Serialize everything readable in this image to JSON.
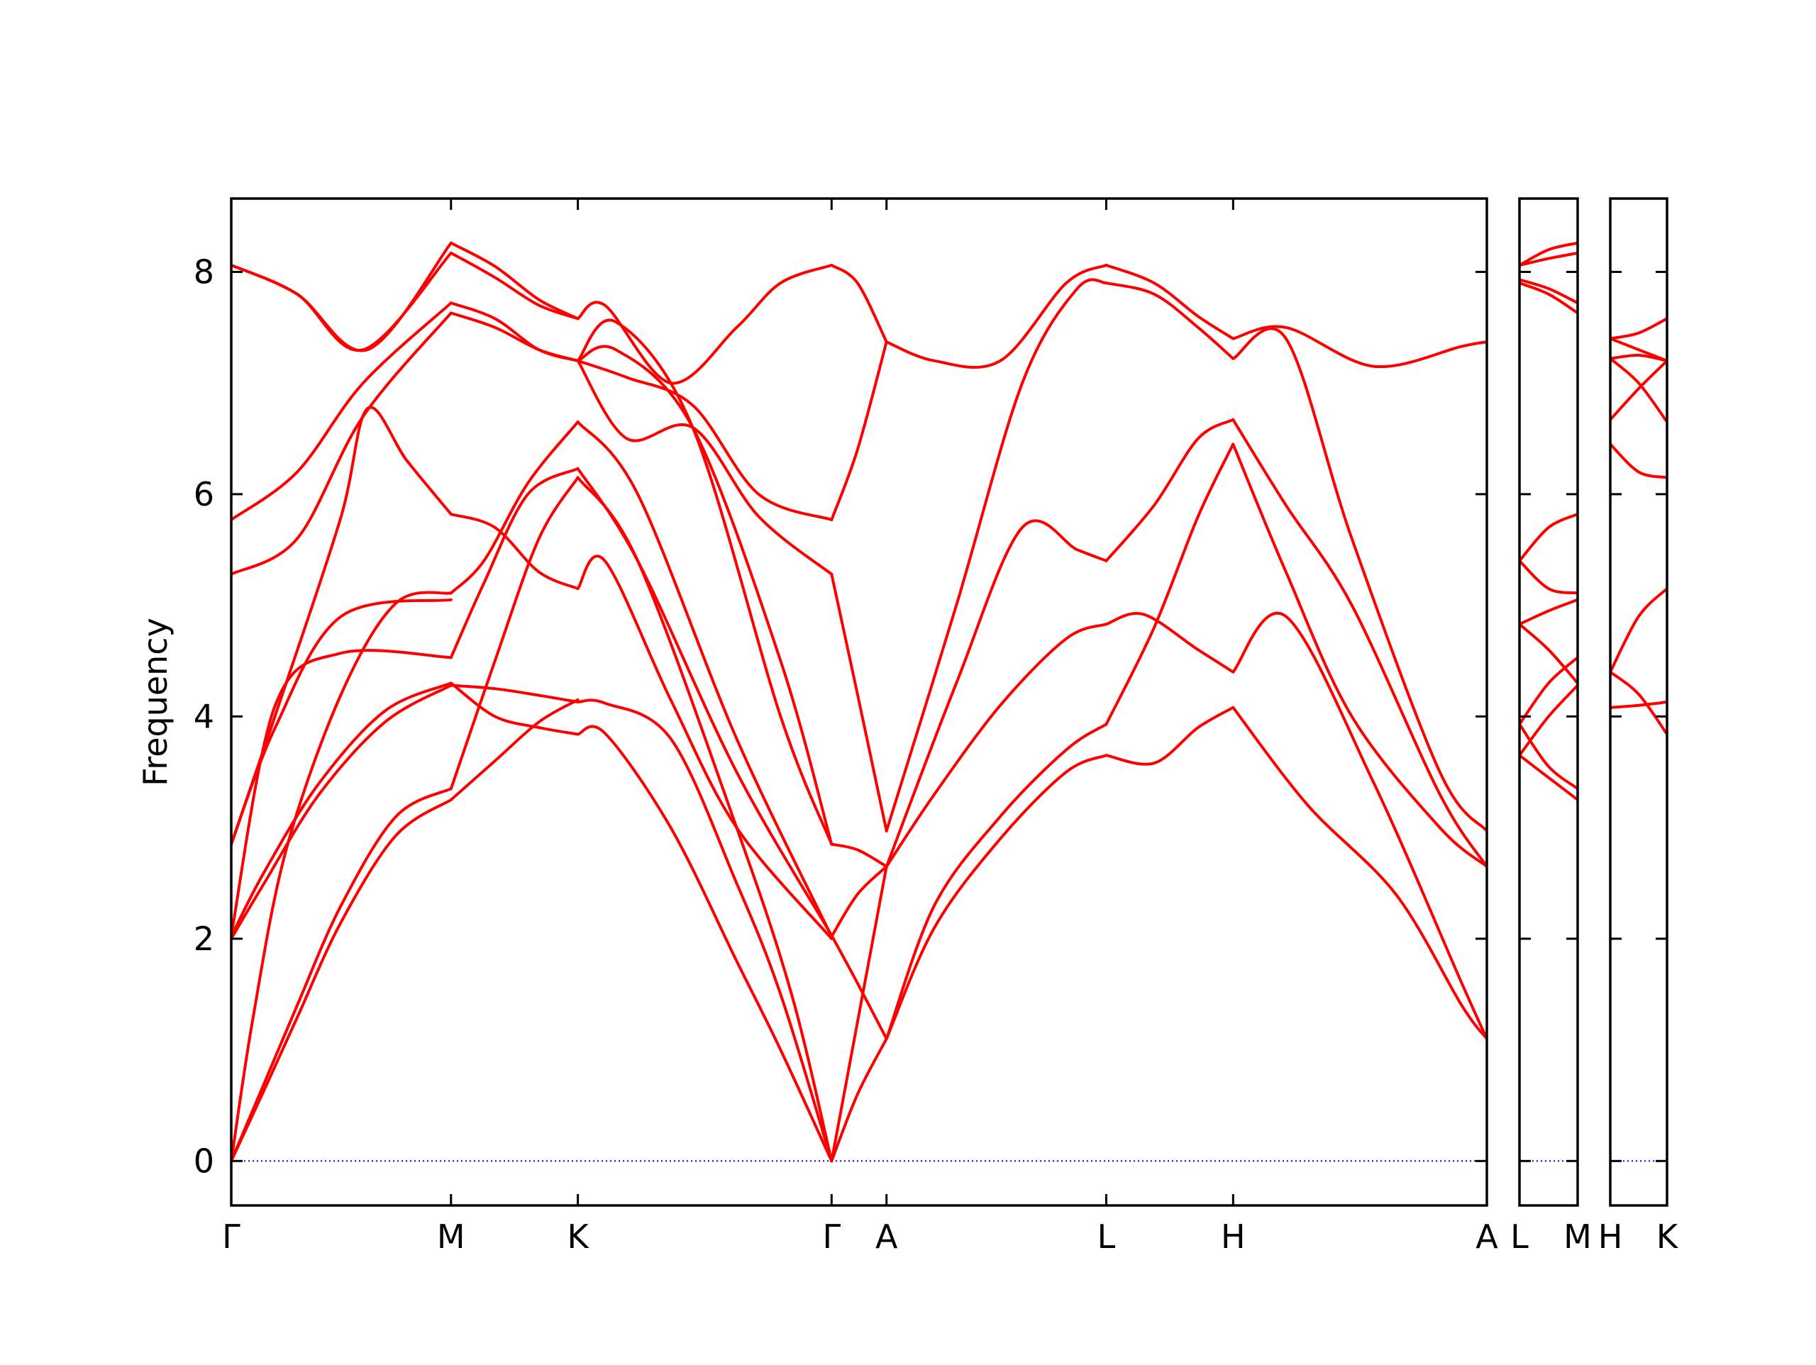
{
  "chart_data": {
    "type": "line",
    "ylabel": "Frequency",
    "ylim": [
      -0.4,
      8.66
    ],
    "yticks": [
      0,
      2,
      4,
      6,
      8
    ],
    "line_color": "#ff0000",
    "zero_line_color": "#0000ff",
    "panels": [
      {
        "segments": [
          {
            "from": "Γ",
            "to": "M",
            "x0": 0,
            "x1": 1
          },
          {
            "from": "M",
            "to": "K",
            "x0": 1,
            "x1": 1.5774
          },
          {
            "from": "K",
            "to": "Γ",
            "x0": 1.5774,
            "x1": 2.7321
          },
          {
            "from": "Γ",
            "to": "A",
            "x0": 2.7321,
            "x1": 2.9821
          },
          {
            "from": "A",
            "to": "L",
            "x0": 2.9821,
            "x1": 3.9821
          },
          {
            "from": "L",
            "to": "H",
            "x0": 3.9821,
            "x1": 4.5595
          },
          {
            "from": "H",
            "to": "A",
            "x0": 4.5595,
            "x1": 5.7142
          }
        ],
        "xlim": [
          0,
          5.7142
        ],
        "tick_labels": [
          "Γ",
          "M",
          "K",
          "Γ",
          "A",
          "L",
          "H",
          "A"
        ]
      },
      {
        "segments": [
          {
            "from": "L",
            "to": "M",
            "x0": 0,
            "x1": 0.25
          }
        ],
        "xlim": [
          0,
          0.25
        ],
        "tick_labels": [
          "L",
          "M"
        ]
      },
      {
        "segments": [
          {
            "from": "H",
            "to": "K",
            "x0": 0,
            "x1": 0.25
          }
        ],
        "xlim": [
          0,
          0.25
        ],
        "tick_labels": [
          "H",
          "K"
        ]
      }
    ],
    "series": [
      {
        "panel": 0,
        "x": [
          0,
          0.15,
          0.3,
          0.5,
          0.75,
          1
        ],
        "y": [
          0,
          0.64,
          1.29,
          2.15,
          2.93,
          3.25
        ]
      },
      {
        "panel": 0,
        "x": [
          0,
          0.15,
          0.3,
          0.5,
          0.75,
          1
        ],
        "y": [
          0,
          0.7,
          1.4,
          2.3,
          3.1,
          3.35
        ]
      },
      {
        "panel": 0,
        "x": [
          0,
          0.1,
          0.25,
          0.5,
          0.75,
          1
        ],
        "y": [
          0,
          1.3,
          2.8,
          4.2,
          5.02,
          5.11
        ]
      },
      {
        "panel": 0,
        "x": [
          0,
          0.15,
          0.4,
          0.7,
          1
        ],
        "y": [
          2.02,
          2.6,
          3.4,
          4.05,
          4.3
        ]
      },
      {
        "panel": 0,
        "x": [
          0,
          0.15,
          0.4,
          0.7,
          1
        ],
        "y": [
          2.0,
          2.5,
          3.3,
          3.95,
          4.28
        ]
      },
      {
        "panel": 0,
        "x": [
          0,
          0.2,
          0.5,
          1
        ],
        "y": [
          2.03,
          4.1,
          4.57,
          4.53
        ]
      },
      {
        "panel": 0,
        "x": [
          0,
          0.2,
          0.5,
          1
        ],
        "y": [
          2.85,
          3.9,
          4.9,
          5.05
        ]
      },
      {
        "panel": 0,
        "x": [
          0,
          0.25,
          0.5,
          0.62,
          0.8,
          1
        ],
        "y": [
          2.85,
          4.3,
          5.8,
          6.77,
          6.3,
          5.82
        ]
      },
      {
        "panel": 0,
        "x": [
          0,
          0.3,
          0.6,
          1
        ],
        "y": [
          5.28,
          5.6,
          6.7,
          7.63
        ]
      },
      {
        "panel": 0,
        "x": [
          0,
          0.3,
          0.6,
          1
        ],
        "y": [
          5.77,
          6.2,
          7.0,
          7.72
        ]
      },
      {
        "panel": 0,
        "x": [
          0,
          0.3,
          0.6,
          1
        ],
        "y": [
          8.06,
          7.8,
          7.3,
          8.17
        ]
      },
      {
        "panel": 0,
        "x": [
          0,
          0.3,
          0.62,
          1
        ],
        "y": [
          8.06,
          7.8,
          7.3,
          8.26
        ]
      },
      {
        "panel": 0,
        "x": [
          1,
          1.2,
          1.4,
          1.5774
        ],
        "y": [
          3.25,
          3.6,
          3.95,
          4.15
        ]
      },
      {
        "panel": 0,
        "x": [
          1,
          1.2,
          1.4,
          1.5774
        ],
        "y": [
          3.35,
          4.5,
          5.6,
          6.15
        ]
      },
      {
        "panel": 0,
        "x": [
          1,
          1.15,
          1.35,
          1.5774
        ],
        "y": [
          5.11,
          5.4,
          6.1,
          6.65
        ]
      },
      {
        "panel": 0,
        "x": [
          1,
          1.2,
          1.4,
          1.5774
        ],
        "y": [
          4.3,
          4.0,
          3.9,
          3.84
        ]
      },
      {
        "panel": 0,
        "x": [
          1,
          1.2,
          1.4,
          1.5774
        ],
        "y": [
          4.28,
          4.25,
          4.19,
          4.13
        ]
      },
      {
        "panel": 0,
        "x": [
          1,
          1.2,
          1.4,
          1.5774
        ],
        "y": [
          5.82,
          5.7,
          5.3,
          5.15
        ]
      },
      {
        "panel": 0,
        "x": [
          1,
          1.15,
          1.35,
          1.5774
        ],
        "y": [
          4.53,
          5.2,
          6.0,
          6.23
        ]
      },
      {
        "panel": 0,
        "x": [
          1,
          1.2,
          1.4,
          1.5774
        ],
        "y": [
          7.63,
          7.5,
          7.3,
          7.2
        ]
      },
      {
        "panel": 0,
        "x": [
          1,
          1.2,
          1.4,
          1.5774
        ],
        "y": [
          7.72,
          7.58,
          7.3,
          7.2
        ]
      },
      {
        "panel": 0,
        "x": [
          1,
          1.2,
          1.4,
          1.5774
        ],
        "y": [
          8.17,
          7.95,
          7.7,
          7.58
        ]
      },
      {
        "panel": 0,
        "x": [
          1,
          1.2,
          1.4,
          1.5774
        ],
        "y": [
          8.26,
          8.05,
          7.75,
          7.58
        ]
      },
      {
        "panel": 0,
        "x": [
          1.5774,
          1.7,
          2.0,
          2.3,
          2.5,
          2.7321
        ],
        "y": [
          3.84,
          3.85,
          3.0,
          1.8,
          1.0,
          0
        ]
      },
      {
        "panel": 0,
        "x": [
          1.5774,
          1.7,
          2.0,
          2.3,
          2.5,
          2.7321
        ],
        "y": [
          4.13,
          4.12,
          3.8,
          2.5,
          1.5,
          0
        ]
      },
      {
        "panel": 0,
        "x": [
          1.5774,
          1.85,
          2.3,
          2.55,
          2.7321
        ],
        "y": [
          6.15,
          5.4,
          3.0,
          1.5,
          0
        ]
      },
      {
        "panel": 0,
        "x": [
          1.5774,
          1.85,
          2.3,
          2.7321
        ],
        "y": [
          6.23,
          5.4,
          3.5,
          2.03
        ]
      },
      {
        "panel": 0,
        "x": [
          1.5774,
          1.85,
          2.3,
          2.7321
        ],
        "y": [
          6.65,
          6.0,
          3.8,
          2.02
        ]
      },
      {
        "panel": 0,
        "x": [
          1.5774,
          1.7,
          2.0,
          2.3,
          2.7321
        ],
        "y": [
          5.15,
          5.4,
          4.15,
          3.0,
          2.0
        ]
      },
      {
        "panel": 0,
        "x": [
          1.5774,
          1.75,
          2.1,
          2.5,
          2.7321
        ],
        "y": [
          7.2,
          7.3,
          6.6,
          4.5,
          2.85
        ]
      },
      {
        "panel": 0,
        "x": [
          1.5774,
          1.75,
          2.1,
          2.5,
          2.7321
        ],
        "y": [
          7.2,
          7.55,
          6.6,
          4.0,
          2.85
        ]
      },
      {
        "panel": 0,
        "x": [
          1.5774,
          1.8,
          2.1,
          2.4,
          2.7321
        ],
        "y": [
          7.2,
          6.5,
          6.6,
          5.8,
          5.28
        ]
      },
      {
        "panel": 0,
        "x": [
          1.5774,
          1.8,
          2.1,
          2.4,
          2.7321
        ],
        "y": [
          7.2,
          7.05,
          6.8,
          6.0,
          5.77
        ]
      },
      {
        "panel": 0,
        "x": [
          1.5774,
          1.7,
          2.0,
          2.3,
          2.5,
          2.7321
        ],
        "y": [
          7.58,
          7.7,
          7.0,
          7.5,
          7.9,
          8.06
        ]
      },
      {
        "panel": 0,
        "x": [
          2.7321,
          2.9821
        ],
        "y": [
          0,
          2.65
        ]
      },
      {
        "panel": 0,
        "x": [
          2.7321,
          2.85,
          2.9821
        ],
        "y": [
          0,
          0.6,
          1.1
        ]
      },
      {
        "panel": 0,
        "x": [
          2.7321,
          2.85,
          2.9821
        ],
        "y": [
          2.03,
          1.6,
          1.1
        ]
      },
      {
        "panel": 0,
        "x": [
          2.7321,
          2.85,
          2.9821
        ],
        "y": [
          2.02,
          2.4,
          2.65
        ]
      },
      {
        "panel": 0,
        "x": [
          2.7321,
          2.85,
          2.9821
        ],
        "y": [
          2.85,
          2.8,
          2.65
        ]
      },
      {
        "panel": 0,
        "x": [
          2.7321,
          2.85,
          2.9821
        ],
        "y": [
          5.28,
          4.2,
          2.97
        ]
      },
      {
        "panel": 0,
        "x": [
          2.7321,
          2.85,
          2.9821
        ],
        "y": [
          5.77,
          6.4,
          7.37
        ]
      },
      {
        "panel": 0,
        "x": [
          2.7321,
          2.85,
          2.9821
        ],
        "y": [
          8.06,
          7.9,
          7.37
        ]
      },
      {
        "panel": 0,
        "x": [
          2.9821,
          3.2,
          3.5,
          3.8,
          3.9821
        ],
        "y": [
          1.1,
          2.1,
          2.9,
          3.5,
          3.65
        ]
      },
      {
        "panel": 0,
        "x": [
          2.9821,
          3.2,
          3.5,
          3.8,
          3.9821
        ],
        "y": [
          1.1,
          2.3,
          3.1,
          3.7,
          3.93
        ]
      },
      {
        "panel": 0,
        "x": [
          2.9821,
          3.2,
          3.5,
          3.8,
          3.9821
        ],
        "y": [
          2.65,
          3.3,
          4.1,
          4.7,
          4.83
        ]
      },
      {
        "panel": 0,
        "x": [
          2.9821,
          3.3,
          3.6,
          3.85,
          3.9821
        ],
        "y": [
          2.65,
          4.3,
          5.7,
          5.5,
          5.4
        ]
      },
      {
        "panel": 0,
        "x": [
          2.9821,
          3.3,
          3.6,
          3.85,
          3.9821
        ],
        "y": [
          2.97,
          5.0,
          7.0,
          7.85,
          7.9
        ]
      },
      {
        "panel": 0,
        "x": [
          2.9821,
          3.2,
          3.5,
          3.8,
          3.9821
        ],
        "y": [
          7.37,
          7.2,
          7.2,
          7.9,
          8.06
        ]
      },
      {
        "panel": 0,
        "x": [
          3.9821,
          4.2,
          4.4,
          4.5595
        ],
        "y": [
          3.65,
          3.58,
          3.9,
          4.08
        ]
      },
      {
        "panel": 0,
        "x": [
          3.9821,
          4.2,
          4.4,
          4.5595
        ],
        "y": [
          3.93,
          4.8,
          5.8,
          6.45
        ]
      },
      {
        "panel": 0,
        "x": [
          3.9821,
          4.15,
          4.4,
          4.5595
        ],
        "y": [
          4.83,
          4.92,
          4.6,
          4.4
        ]
      },
      {
        "panel": 0,
        "x": [
          3.9821,
          4.2,
          4.4,
          4.5595
        ],
        "y": [
          5.4,
          5.9,
          6.5,
          6.67
        ]
      },
      {
        "panel": 0,
        "x": [
          3.9821,
          4.2,
          4.4,
          4.5595
        ],
        "y": [
          7.9,
          7.8,
          7.5,
          7.22
        ]
      },
      {
        "panel": 0,
        "x": [
          3.9821,
          4.2,
          4.4,
          4.5595
        ],
        "y": [
          8.06,
          7.9,
          7.6,
          7.4
        ]
      },
      {
        "panel": 0,
        "x": [
          4.5595,
          4.9,
          5.3,
          5.6,
          5.7142
        ],
        "y": [
          4.08,
          3.2,
          2.4,
          1.4,
          1.1
        ]
      },
      {
        "panel": 0,
        "x": [
          4.5595,
          4.8,
          5.2,
          5.6,
          5.7142
        ],
        "y": [
          4.4,
          4.9,
          3.4,
          1.6,
          1.1
        ]
      },
      {
        "panel": 0,
        "x": [
          4.5595,
          4.8,
          5.1,
          5.5,
          5.7142
        ],
        "y": [
          6.45,
          5.3,
          4.0,
          3.0,
          2.65
        ]
      },
      {
        "panel": 0,
        "x": [
          4.5595,
          4.8,
          5.1,
          5.5,
          5.7142
        ],
        "y": [
          6.67,
          5.9,
          5.0,
          3.3,
          2.65
        ]
      },
      {
        "panel": 0,
        "x": [
          4.5595,
          4.8,
          5.1,
          5.5,
          5.7142
        ],
        "y": [
          7.22,
          7.4,
          5.6,
          3.5,
          2.97
        ]
      },
      {
        "panel": 0,
        "x": [
          4.5595,
          4.8,
          5.2,
          5.6,
          5.7142
        ],
        "y": [
          7.4,
          7.5,
          7.15,
          7.33,
          7.37
        ]
      },
      {
        "panel": 1,
        "x": [
          0,
          0.125,
          0.25
        ],
        "y": [
          8.06,
          8.2,
          8.26
        ]
      },
      {
        "panel": 1,
        "x": [
          0,
          0.125,
          0.25
        ],
        "y": [
          8.06,
          8.12,
          8.17
        ]
      },
      {
        "panel": 1,
        "x": [
          0,
          0.125,
          0.25
        ],
        "y": [
          7.93,
          7.85,
          7.72
        ]
      },
      {
        "panel": 1,
        "x": [
          0,
          0.125,
          0.25
        ],
        "y": [
          7.9,
          7.8,
          7.63
        ]
      },
      {
        "panel": 1,
        "x": [
          0,
          0.125,
          0.25
        ],
        "y": [
          5.4,
          5.7,
          5.82
        ]
      },
      {
        "panel": 1,
        "x": [
          0,
          0.125,
          0.25
        ],
        "y": [
          5.4,
          5.15,
          5.11
        ]
      },
      {
        "panel": 1,
        "x": [
          0,
          0.125,
          0.25
        ],
        "y": [
          4.83,
          4.95,
          5.05
        ]
      },
      {
        "panel": 1,
        "x": [
          0,
          0.125,
          0.25
        ],
        "y": [
          4.83,
          4.6,
          4.3
        ]
      },
      {
        "panel": 1,
        "x": [
          0,
          0.125,
          0.25
        ],
        "y": [
          3.93,
          4.3,
          4.53
        ]
      },
      {
        "panel": 1,
        "x": [
          0,
          0.125,
          0.25
        ],
        "y": [
          3.93,
          3.55,
          3.35
        ]
      },
      {
        "panel": 1,
        "x": [
          0,
          0.125,
          0.25
        ],
        "y": [
          3.65,
          4.0,
          4.28
        ]
      },
      {
        "panel": 1,
        "x": [
          0,
          0.125,
          0.25
        ],
        "y": [
          3.65,
          3.45,
          3.25
        ]
      },
      {
        "panel": 2,
        "x": [
          0,
          0.125,
          0.25
        ],
        "y": [
          7.4,
          7.45,
          7.58
        ]
      },
      {
        "panel": 2,
        "x": [
          0,
          0.125,
          0.25
        ],
        "y": [
          7.4,
          7.3,
          7.2
        ]
      },
      {
        "panel": 2,
        "x": [
          0,
          0.125,
          0.25
        ],
        "y": [
          7.22,
          7.0,
          6.65
        ]
      },
      {
        "panel": 2,
        "x": [
          0,
          0.125,
          0.25
        ],
        "y": [
          7.22,
          7.25,
          7.2
        ]
      },
      {
        "panel": 2,
        "x": [
          0,
          0.125,
          0.25
        ],
        "y": [
          6.67,
          6.95,
          7.2
        ]
      },
      {
        "panel": 2,
        "x": [
          0,
          0.125,
          0.25
        ],
        "y": [
          6.45,
          6.2,
          6.15
        ]
      },
      {
        "panel": 2,
        "x": [
          0,
          0.125,
          0.25
        ],
        "y": [
          4.4,
          4.9,
          5.15
        ]
      },
      {
        "panel": 2,
        "x": [
          0,
          0.125,
          0.25
        ],
        "y": [
          4.4,
          4.2,
          3.84
        ]
      },
      {
        "panel": 2,
        "x": [
          0,
          0.125,
          0.25
        ],
        "y": [
          4.08,
          4.1,
          4.13
        ]
      }
    ]
  }
}
